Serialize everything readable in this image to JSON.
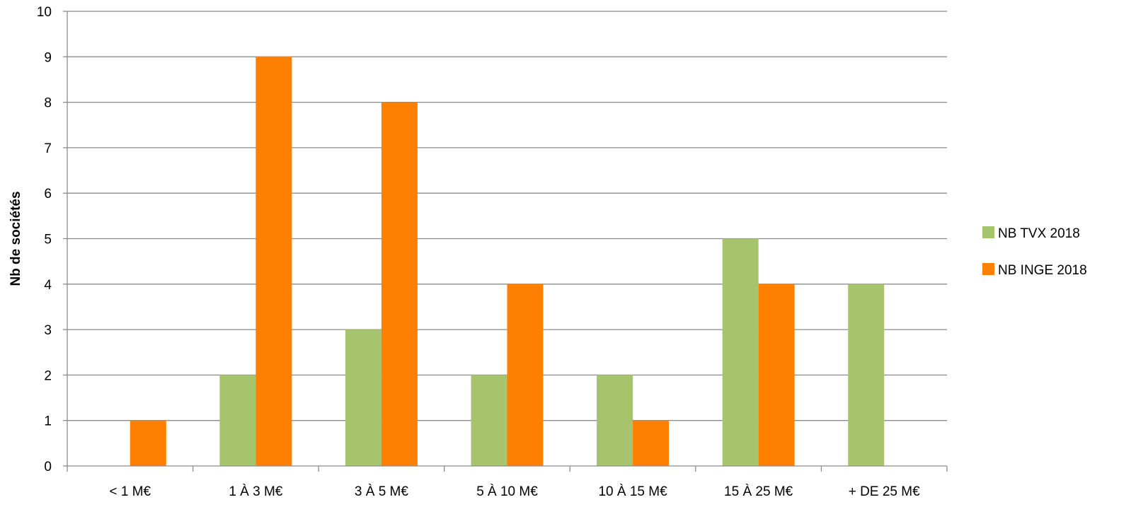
{
  "chart_data": {
    "type": "bar",
    "title": "",
    "xlabel": "",
    "ylabel": "Nb de sociétés",
    "ylim": [
      0,
      10
    ],
    "yticks": [
      "0",
      "1",
      "2",
      "3",
      "4",
      "5",
      "6",
      "7",
      "8",
      "9",
      "10"
    ],
    "grid": true,
    "legend_position": "right",
    "categories": [
      "< 1 M€",
      "1 À 3 M€",
      "3 À 5 M€",
      "5 À 10 M€",
      "10 À 15 M€",
      "15 À 25 M€",
      "+ DE 25 M€"
    ],
    "series": [
      {
        "name": "NB TVX 2018",
        "color": "#a6c46c",
        "values": [
          0,
          2,
          3,
          2,
          2,
          5,
          4
        ]
      },
      {
        "name": "NB INGE 2018",
        "color": "#ff7f00",
        "values": [
          1,
          9,
          8,
          4,
          1,
          4,
          0
        ]
      }
    ]
  }
}
